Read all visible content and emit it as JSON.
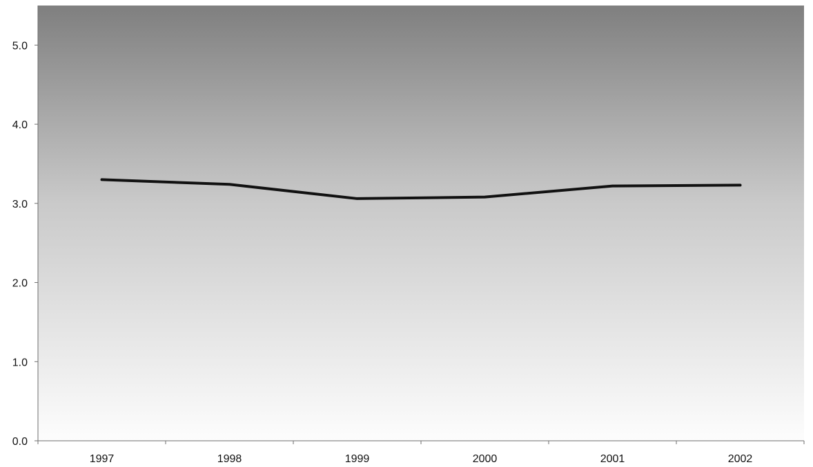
{
  "chart_data": {
    "type": "line",
    "categories": [
      "1997",
      "1998",
      "1999",
      "2000",
      "2001",
      "2002"
    ],
    "series": [
      {
        "values": [
          3.3,
          3.24,
          3.06,
          3.08,
          3.22,
          3.23
        ]
      }
    ],
    "y_ticks": [
      "0.0",
      "1.0",
      "2.0",
      "3.0",
      "4.0",
      "5.0"
    ],
    "ylim": [
      0,
      5.5
    ],
    "grid": false,
    "legend": "none",
    "colors": {
      "plot_top": "#7f7f7f",
      "plot_bottom": "#fdfdfd",
      "line": "#111111"
    }
  }
}
